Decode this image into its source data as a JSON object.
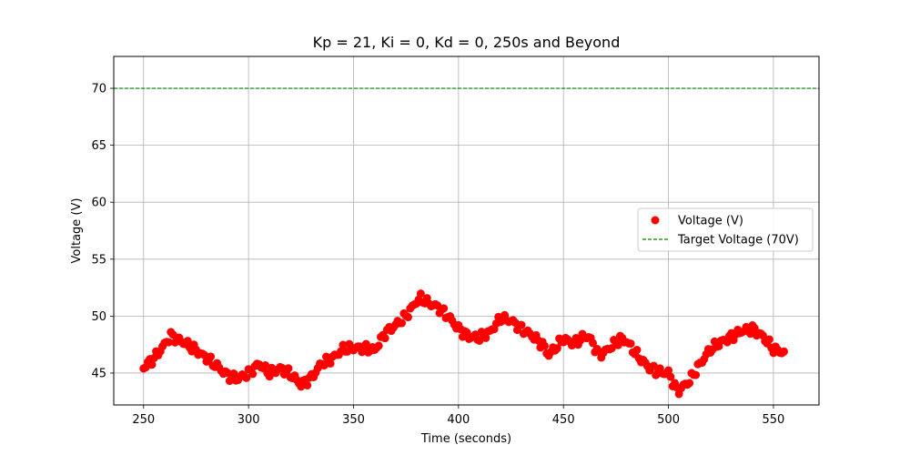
{
  "chart_data": {
    "type": "scatter",
    "title": "Kp = 21, Ki = 0, Kd = 0, 250s and Beyond",
    "xlabel": "Time (seconds)",
    "ylabel": "Voltage (V)",
    "xlim": [
      235.8,
      571.7
    ],
    "ylim": [
      42.2,
      72.8
    ],
    "x_ticks": [
      250,
      300,
      350,
      400,
      450,
      500,
      550
    ],
    "x_tick_labels": [
      "250",
      "300",
      "350",
      "400",
      "450",
      "500",
      "550"
    ],
    "y_ticks": [
      45,
      50,
      55,
      60,
      65,
      70
    ],
    "y_tick_labels": [
      "45",
      "50",
      "55",
      "60",
      "65",
      "70"
    ],
    "grid": true,
    "legend_position": "center-right",
    "series": [
      {
        "name": "Voltage (V)",
        "kind": "scatter",
        "color": "#ff0000",
        "x_start": 250,
        "x_end": 555,
        "x_step": 1,
        "x": [
          250,
          255,
          260,
          263,
          265,
          270,
          275,
          280,
          285,
          290,
          295,
          300,
          305,
          310,
          315,
          320,
          325,
          330,
          335,
          340,
          345,
          350,
          355,
          360,
          365,
          370,
          375,
          380,
          382,
          385,
          390,
          395,
          400,
          405,
          410,
          415,
          420,
          425,
          430,
          435,
          440,
          443,
          445,
          450,
          455,
          460,
          462,
          467,
          470,
          475,
          477,
          480,
          485,
          490,
          495,
          500,
          504,
          505,
          510,
          515,
          520,
          525,
          530,
          535,
          540,
          545,
          550,
          555
        ],
        "y": [
          45.5,
          46.3,
          47.5,
          48.3,
          48.1,
          47.6,
          47.0,
          46.3,
          45.6,
          44.8,
          44.5,
          45.0,
          45.8,
          45.0,
          45.4,
          44.9,
          44.0,
          44.6,
          45.9,
          46.3,
          47.1,
          47.2,
          47.2,
          47.0,
          48.5,
          49.2,
          50.0,
          51.3,
          51.6,
          51.2,
          50.8,
          50.0,
          48.9,
          48.2,
          48.1,
          48.6,
          49.8,
          49.6,
          48.9,
          48.3,
          47.5,
          46.6,
          47.0,
          48.0,
          47.6,
          48.2,
          48.2,
          46.6,
          46.9,
          47.7,
          48.0,
          47.8,
          46.6,
          45.6,
          45.1,
          45.0,
          43.5,
          43.5,
          44.3,
          45.8,
          47.1,
          47.7,
          48.2,
          48.7,
          48.9,
          48.2,
          47.1,
          46.8
        ]
      },
      {
        "name": "Target Voltage (70V)",
        "kind": "hline",
        "color": "#008000",
        "y": 70,
        "linestyle": "dashed"
      }
    ]
  }
}
